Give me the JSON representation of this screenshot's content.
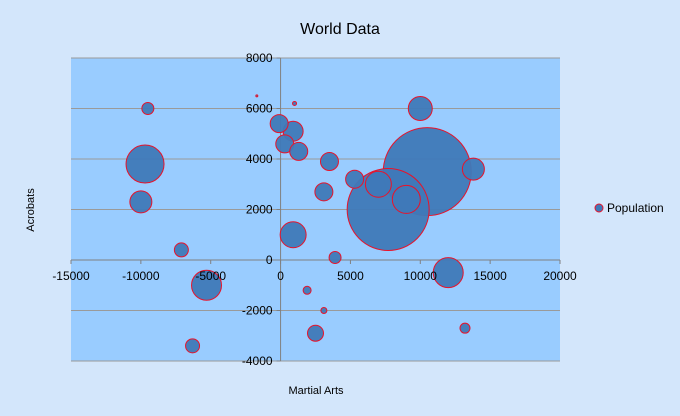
{
  "chart_data": {
    "type": "scatter",
    "title": "World Data",
    "xlabel": "Martial Arts",
    "ylabel": "Acrobats",
    "xlim": [
      -15000,
      20000
    ],
    "ylim": [
      -4000,
      8000
    ],
    "x_ticks": [
      -15000,
      -10000,
      -5000,
      0,
      5000,
      10000,
      15000,
      20000
    ],
    "y_ticks": [
      -4000,
      -2000,
      0,
      2000,
      4000,
      6000,
      8000
    ],
    "x_tick_labels": [
      "-15000",
      "-10000",
      "-5000",
      "0",
      "5000",
      "10000",
      "15000",
      "20000"
    ],
    "y_tick_labels": [
      "-4000",
      "-2000",
      "0",
      "2000",
      "4000",
      "6000",
      "8000"
    ],
    "grid": "horizontal",
    "legend_position": "right",
    "legend": [
      "Population"
    ],
    "colors": {
      "plot_background": "#99ccff",
      "page_background": "#d3e6fb",
      "bubble_fill": "#3f79b8",
      "bubble_edge": "#e8132a",
      "gridline": "#9a9a9a"
    },
    "series": [
      {
        "name": "Population",
        "points": [
          {
            "x": -9500,
            "y": 6000,
            "size": 6
          },
          {
            "x": -9700,
            "y": 3800,
            "size": 19
          },
          {
            "x": -10000,
            "y": 2300,
            "size": 11
          },
          {
            "x": -7100,
            "y": 400,
            "size": 7
          },
          {
            "x": -5300,
            "y": -1000,
            "size": 15
          },
          {
            "x": -6300,
            "y": -3400,
            "size": 7
          },
          {
            "x": -1700,
            "y": 6500,
            "size": 1
          },
          {
            "x": -100,
            "y": 5400,
            "size": 9
          },
          {
            "x": 300,
            "y": 4600,
            "size": 9
          },
          {
            "x": 900,
            "y": 5100,
            "size": 10
          },
          {
            "x": 1000,
            "y": 6200,
            "size": 2
          },
          {
            "x": 1300,
            "y": 4300,
            "size": 9
          },
          {
            "x": 900,
            "y": 1000,
            "size": 13
          },
          {
            "x": 3500,
            "y": 3900,
            "size": 9
          },
          {
            "x": 3100,
            "y": 2700,
            "size": 9
          },
          {
            "x": 3900,
            "y": 100,
            "size": 6
          },
          {
            "x": 1900,
            "y": -1200,
            "size": 4
          },
          {
            "x": 3100,
            "y": -2000,
            "size": 3
          },
          {
            "x": 2500,
            "y": -2900,
            "size": 8
          },
          {
            "x": 5300,
            "y": 3200,
            "size": 9
          },
          {
            "x": 7000,
            "y": 3000,
            "size": 13
          },
          {
            "x": 7700,
            "y": 2000,
            "size": 41
          },
          {
            "x": 9000,
            "y": 2400,
            "size": 14
          },
          {
            "x": 10000,
            "y": 6000,
            "size": 12
          },
          {
            "x": 10500,
            "y": 3500,
            "size": 44
          },
          {
            "x": 13800,
            "y": 3600,
            "size": 11
          },
          {
            "x": 12000,
            "y": -500,
            "size": 15
          },
          {
            "x": 13200,
            "y": -2700,
            "size": 5
          }
        ]
      }
    ]
  }
}
